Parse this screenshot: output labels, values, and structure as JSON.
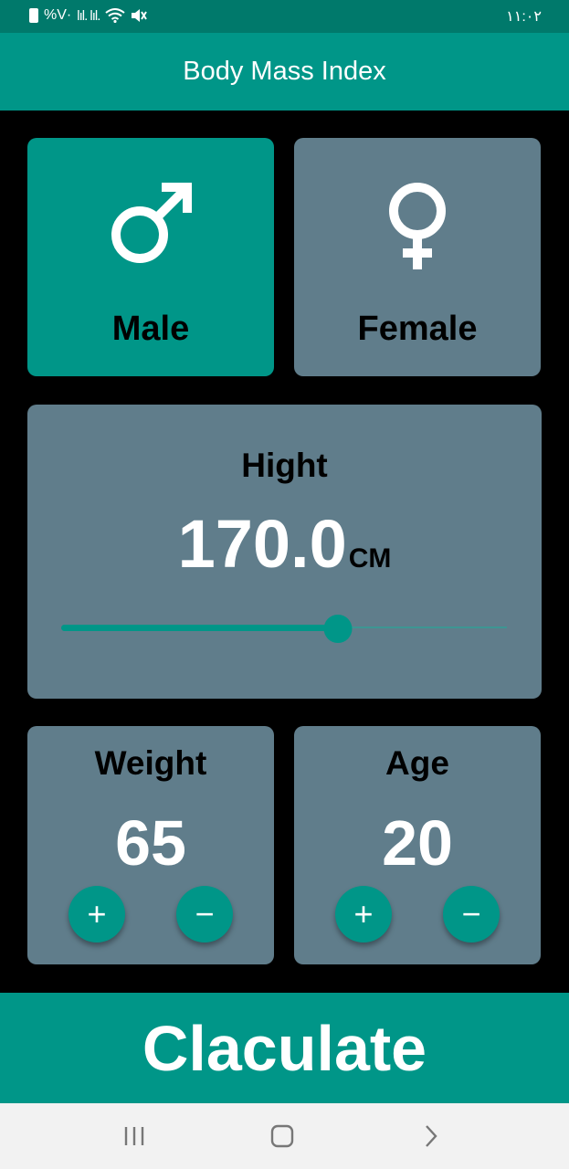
{
  "status_bar": {
    "left_text": "%V·",
    "signal_text": "lıl. lıl.",
    "time": "١١:٠٢"
  },
  "app_bar": {
    "title": "Body Mass Index"
  },
  "gender": {
    "male": {
      "label": "Male",
      "icon": "male-icon",
      "selected": true
    },
    "female": {
      "label": "Female",
      "icon": "female-icon",
      "selected": false
    }
  },
  "height": {
    "label": "Hight",
    "value": "170.0",
    "unit": "CM",
    "slider_fraction": 0.62
  },
  "weight": {
    "label": "Weight",
    "value": "65",
    "plus": "+",
    "minus": "−"
  },
  "age": {
    "label": "Age",
    "value": "20",
    "plus": "+",
    "minus": "−"
  },
  "calculate": {
    "label": "Claculate"
  },
  "colors": {
    "accent": "#009688",
    "status_bar": "#00796B",
    "card": "#607D8B",
    "background": "#000000"
  },
  "nav": {
    "recents_icon": "recents-icon",
    "home_icon": "home-icon",
    "back_icon": "back-icon"
  }
}
